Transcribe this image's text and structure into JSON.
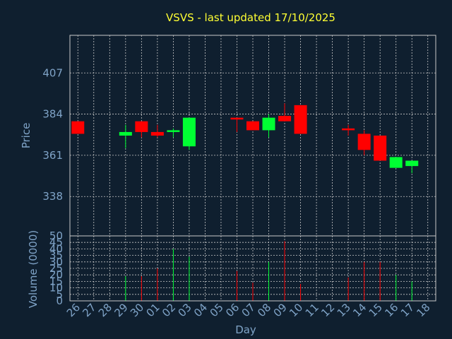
{
  "chart_data": {
    "type": "candlestick",
    "title": "VSVS - last updated 17/10/2025",
    "xlabel": "Day",
    "price_panel": {
      "ylabel": "Price",
      "yticks": [
        338,
        361,
        384,
        407
      ],
      "ylim": [
        316,
        428
      ]
    },
    "volume_panel": {
      "ylabel": "Volume (0000)",
      "yticks": [
        0,
        5,
        10,
        15,
        20,
        25,
        30,
        35,
        40,
        45,
        50
      ],
      "ylim": [
        0,
        50
      ]
    },
    "x_ticks": [
      "26",
      "27",
      "28",
      "29",
      "30",
      "01",
      "02",
      "03",
      "04",
      "05",
      "06",
      "07",
      "08",
      "09",
      "10",
      "11",
      "12",
      "13",
      "14",
      "15",
      "16",
      "17",
      "18"
    ],
    "candles": [
      {
        "x": "26",
        "open": 380,
        "close": 373,
        "high": 380,
        "low": 373,
        "volume": 0
      },
      {
        "x": "29",
        "open": 372,
        "close": 374,
        "high": 378,
        "low": 365,
        "volume": 19
      },
      {
        "x": "30",
        "open": 380,
        "close": 374,
        "high": 380,
        "low": 371,
        "volume": 19
      },
      {
        "x": "01",
        "open": 374,
        "close": 372,
        "high": 378,
        "low": 371,
        "volume": 25
      },
      {
        "x": "02",
        "open": 374,
        "close": 375,
        "high": 376,
        "low": 371,
        "volume": 40
      },
      {
        "x": "03",
        "open": 366,
        "close": 382,
        "high": 382,
        "low": 364,
        "volume": 34
      },
      {
        "x": "06",
        "open": 382,
        "close": 381,
        "high": 382,
        "low": 374,
        "volume": 23
      },
      {
        "x": "07",
        "open": 380,
        "close": 375,
        "high": 380,
        "low": 375,
        "volume": 14
      },
      {
        "x": "08",
        "open": 375,
        "close": 382,
        "high": 384,
        "low": 371,
        "volume": 30
      },
      {
        "x": "09",
        "open": 383,
        "close": 380,
        "high": 390,
        "low": 380,
        "volume": 46
      },
      {
        "x": "10",
        "open": 389,
        "close": 373,
        "high": 389,
        "low": 373,
        "volume": 13
      },
      {
        "x": "13",
        "open": 376,
        "close": 375,
        "high": 378,
        "low": 372,
        "volume": 18
      },
      {
        "x": "14",
        "open": 373,
        "close": 364,
        "high": 375,
        "low": 361,
        "volume": 30
      },
      {
        "x": "15",
        "open": 372,
        "close": 358,
        "high": 372,
        "low": 358,
        "volume": 30
      },
      {
        "x": "16",
        "open": 354,
        "close": 360,
        "high": 360,
        "low": 354,
        "volume": 20
      },
      {
        "x": "17",
        "open": 355,
        "close": 358,
        "high": 358,
        "low": 351,
        "volume": 15
      }
    ],
    "colors": {
      "background": "#0f1f2f",
      "up": "#00ff33",
      "down": "#ff0000",
      "title": "#ffff33",
      "axis_text": "#7fa3c7",
      "grid": "#c8c8c8"
    },
    "grid": true
  }
}
